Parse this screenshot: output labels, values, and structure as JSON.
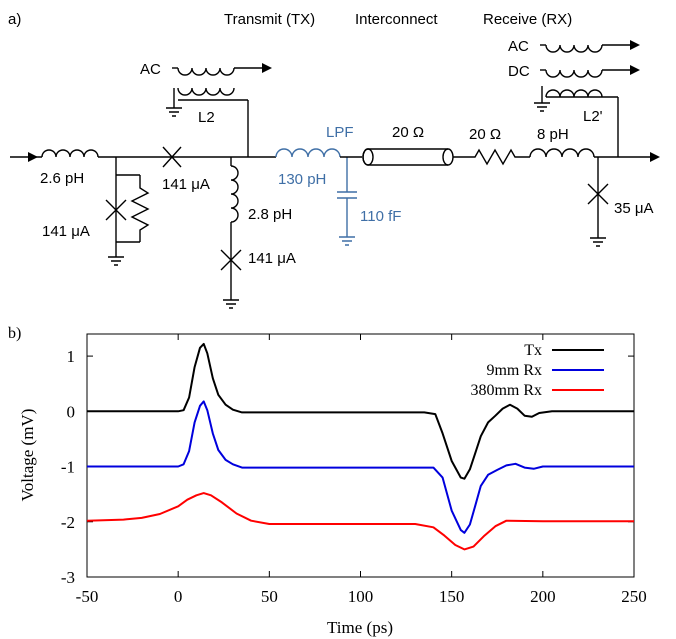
{
  "figure": {
    "panel_a_label": "a)",
    "panel_b_label": "b)"
  },
  "circuit": {
    "section_tx": "Transmit (TX)",
    "section_interconnect": "Interconnect",
    "section_rx": "Receive (RX)",
    "tx_ac": "AC",
    "tx_l2": "L2",
    "l_in": "2.6 pH",
    "jj_series_tx": "141 μA",
    "jj_shunt_left": "141 μA",
    "l_shunt": "2.8 pH",
    "jj_shunt_bottom": "141 μA",
    "lpf": "LPF",
    "lpf_l": "130 pH",
    "lpf_c": "110 fF",
    "tline_z": "20 Ω",
    "r_series": "20 Ω",
    "l_rx": "8 pH",
    "rx_ac": "AC",
    "rx_dc": "DC",
    "rx_l2": "L2'",
    "jj_rx": "35 μA",
    "colors": {
      "black": "#000000",
      "blue": "#3f6fa6"
    }
  },
  "chart_data": {
    "type": "line",
    "xlabel": "Time (ps)",
    "ylabel": "Voltage (mV)",
    "xlim": [
      -50,
      250
    ],
    "ylim": [
      -3,
      1.4
    ],
    "xticks": [
      -50,
      0,
      50,
      100,
      150,
      200,
      250
    ],
    "yticks": [
      1,
      0,
      -1,
      -2,
      -3
    ],
    "ytick_labels": [
      "1",
      "0",
      "-1",
      "-2",
      "-3"
    ],
    "legend_position": "top-right",
    "series": [
      {
        "name": "Tx",
        "color": "#000000",
        "points": [
          [
            -50,
            0
          ],
          [
            0,
            0
          ],
          [
            3,
            0.02
          ],
          [
            6,
            0.25
          ],
          [
            9,
            0.8
          ],
          [
            12,
            1.15
          ],
          [
            14,
            1.22
          ],
          [
            16,
            1.05
          ],
          [
            19,
            0.6
          ],
          [
            22,
            0.3
          ],
          [
            26,
            0.12
          ],
          [
            30,
            0.03
          ],
          [
            35,
            -0.02
          ],
          [
            45,
            -0.02
          ],
          [
            60,
            -0.02
          ],
          [
            100,
            -0.02
          ],
          [
            135,
            -0.02
          ],
          [
            141,
            -0.05
          ],
          [
            145,
            -0.4
          ],
          [
            150,
            -0.9
          ],
          [
            155,
            -1.2
          ],
          [
            157,
            -1.22
          ],
          [
            160,
            -1.05
          ],
          [
            163,
            -0.75
          ],
          [
            166,
            -0.45
          ],
          [
            170,
            -0.2
          ],
          [
            174,
            -0.08
          ],
          [
            178,
            0.05
          ],
          [
            182,
            0.12
          ],
          [
            186,
            0.05
          ],
          [
            190,
            -0.08
          ],
          [
            194,
            -0.1
          ],
          [
            198,
            -0.03
          ],
          [
            205,
            0
          ],
          [
            250,
            0
          ]
        ]
      },
      {
        "name": "9mm Rx",
        "color": "#0000dd",
        "points": [
          [
            -50,
            -1
          ],
          [
            0,
            -1
          ],
          [
            3,
            -0.96
          ],
          [
            6,
            -0.72
          ],
          [
            9,
            -0.2
          ],
          [
            12,
            0.1
          ],
          [
            14,
            0.18
          ],
          [
            16,
            0.02
          ],
          [
            19,
            -0.4
          ],
          [
            22,
            -0.7
          ],
          [
            26,
            -0.88
          ],
          [
            30,
            -0.96
          ],
          [
            35,
            -1.02
          ],
          [
            60,
            -1.02
          ],
          [
            140,
            -1.02
          ],
          [
            145,
            -1.2
          ],
          [
            150,
            -1.8
          ],
          [
            155,
            -2.15
          ],
          [
            157,
            -2.2
          ],
          [
            160,
            -2.05
          ],
          [
            163,
            -1.7
          ],
          [
            166,
            -1.35
          ],
          [
            170,
            -1.15
          ],
          [
            175,
            -1.06
          ],
          [
            180,
            -0.98
          ],
          [
            185,
            -0.95
          ],
          [
            190,
            -1.02
          ],
          [
            195,
            -1.04
          ],
          [
            200,
            -1
          ],
          [
            250,
            -1
          ]
        ]
      },
      {
        "name": "380mm Rx",
        "color": "#ff0000",
        "points": [
          [
            -50,
            -1.98
          ],
          [
            -30,
            -1.96
          ],
          [
            -20,
            -1.93
          ],
          [
            -10,
            -1.86
          ],
          [
            0,
            -1.72
          ],
          [
            5,
            -1.6
          ],
          [
            10,
            -1.52
          ],
          [
            14,
            -1.48
          ],
          [
            18,
            -1.52
          ],
          [
            24,
            -1.65
          ],
          [
            32,
            -1.85
          ],
          [
            40,
            -1.98
          ],
          [
            50,
            -2.04
          ],
          [
            80,
            -2.04
          ],
          [
            130,
            -2.04
          ],
          [
            140,
            -2.1
          ],
          [
            146,
            -2.25
          ],
          [
            152,
            -2.42
          ],
          [
            157,
            -2.5
          ],
          [
            162,
            -2.45
          ],
          [
            168,
            -2.25
          ],
          [
            174,
            -2.08
          ],
          [
            180,
            -1.98
          ],
          [
            200,
            -1.99
          ],
          [
            250,
            -1.99
          ]
        ]
      }
    ]
  }
}
